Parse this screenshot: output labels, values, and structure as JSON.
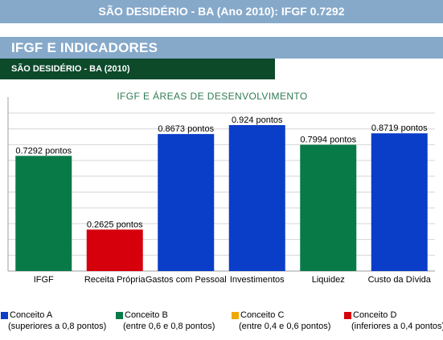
{
  "banner": {
    "title": "SÃO DESIDÉRIO - BA (Ano 2010): IFGF 0.7292"
  },
  "section": {
    "title": "IFGF E INDICADORES",
    "subtitle": "SÃO DESIDÉRIO - BA (2010)"
  },
  "chart_data": {
    "type": "bar",
    "title": "IFGF E ÁREAS DE DESENVOLVIMENTO",
    "categories": [
      "IFGF",
      "Receita Própria",
      "Gastos com Pessoal",
      "Investimentos",
      "Liquidez",
      "Custo da Dívida"
    ],
    "values": [
      0.7292,
      0.2625,
      0.8673,
      0.924,
      0.7994,
      0.8719
    ],
    "value_labels": [
      "0.7292 pontos",
      "0.2625 pontos",
      "0.8673 pontos",
      "0.924 pontos",
      "0.7994 pontos",
      "0.8719 pontos"
    ],
    "bar_colors": [
      "#087a48",
      "#d6000c",
      "#0a3dc8",
      "#0a3dc8",
      "#087a48",
      "#0a3dc8"
    ],
    "ylim": [
      0,
      1
    ],
    "grid": true
  },
  "legend": [
    {
      "name": "Conceito A",
      "range": "(superiores a 0,8 pontos)",
      "color": "#0a3dc8"
    },
    {
      "name": "Conceito B",
      "range": "(entre 0,6 e 0,8 pontos)",
      "color": "#087a48"
    },
    {
      "name": "Conceito C",
      "range": "(entre 0,4 e 0,6 pontos)",
      "color": "#f0a800"
    },
    {
      "name": "Conceito D",
      "range": "(inferiores a 0,4 pontos)",
      "color": "#d6000c"
    }
  ]
}
